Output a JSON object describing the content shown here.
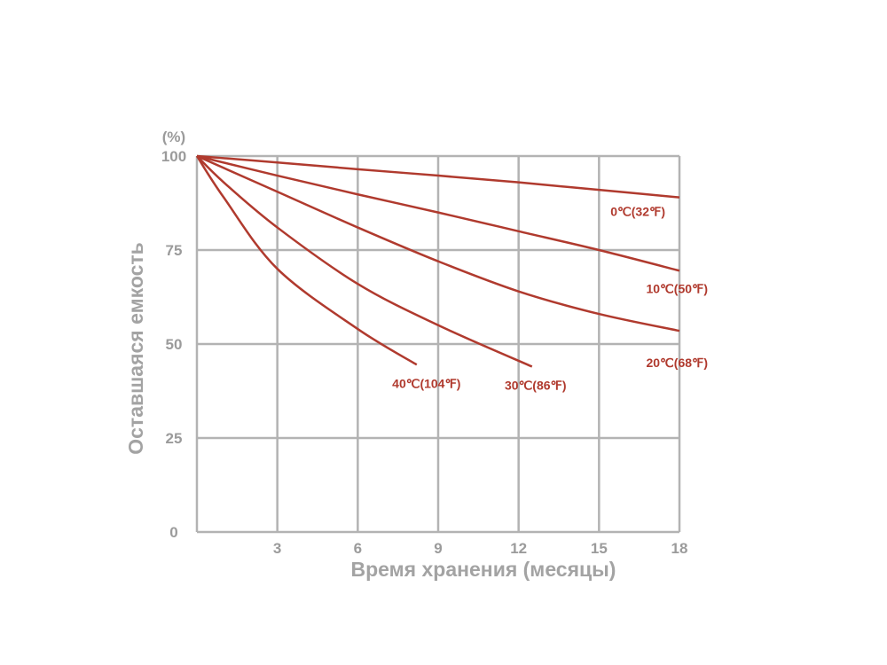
{
  "chart_data": {
    "type": "line",
    "xlabel": "Время хранения (месяцы)",
    "ylabel": "Оставшаяся емкость",
    "yunit": "(%)",
    "xlim": [
      0,
      18
    ],
    "ylim": [
      0,
      100
    ],
    "xticks": [
      3,
      6,
      9,
      12,
      15,
      18
    ],
    "yticks": [
      0,
      25,
      50,
      75,
      100
    ],
    "grid": true,
    "series_color": "#b03a2e",
    "grid_color": "#b3b3b3",
    "series": [
      {
        "name": "0℃(32℉)",
        "x": [
          0,
          3,
          6,
          9,
          12,
          15,
          18
        ],
        "y": [
          100,
          98.3,
          96.5,
          94.8,
          93,
          91,
          89
        ]
      },
      {
        "name": "10℃(50℉)",
        "x": [
          0,
          3,
          6,
          9,
          12,
          15,
          18
        ],
        "y": [
          100,
          94.8,
          89.8,
          85,
          80,
          75,
          69.5
        ]
      },
      {
        "name": "20℃(68℉)",
        "x": [
          0,
          3,
          6,
          9,
          12,
          15,
          18
        ],
        "y": [
          100,
          90.5,
          81,
          72,
          64,
          58,
          53.5
        ]
      },
      {
        "name": "30℃(86℉)",
        "x": [
          0,
          1,
          3,
          6,
          9,
          12.5
        ],
        "y": [
          100,
          93,
          81,
          66,
          55,
          44
        ]
      },
      {
        "name": "40℃(104℉)",
        "x": [
          0,
          1,
          3,
          6,
          8.2
        ],
        "y": [
          100,
          89,
          70,
          54,
          44.5
        ]
      }
    ]
  }
}
